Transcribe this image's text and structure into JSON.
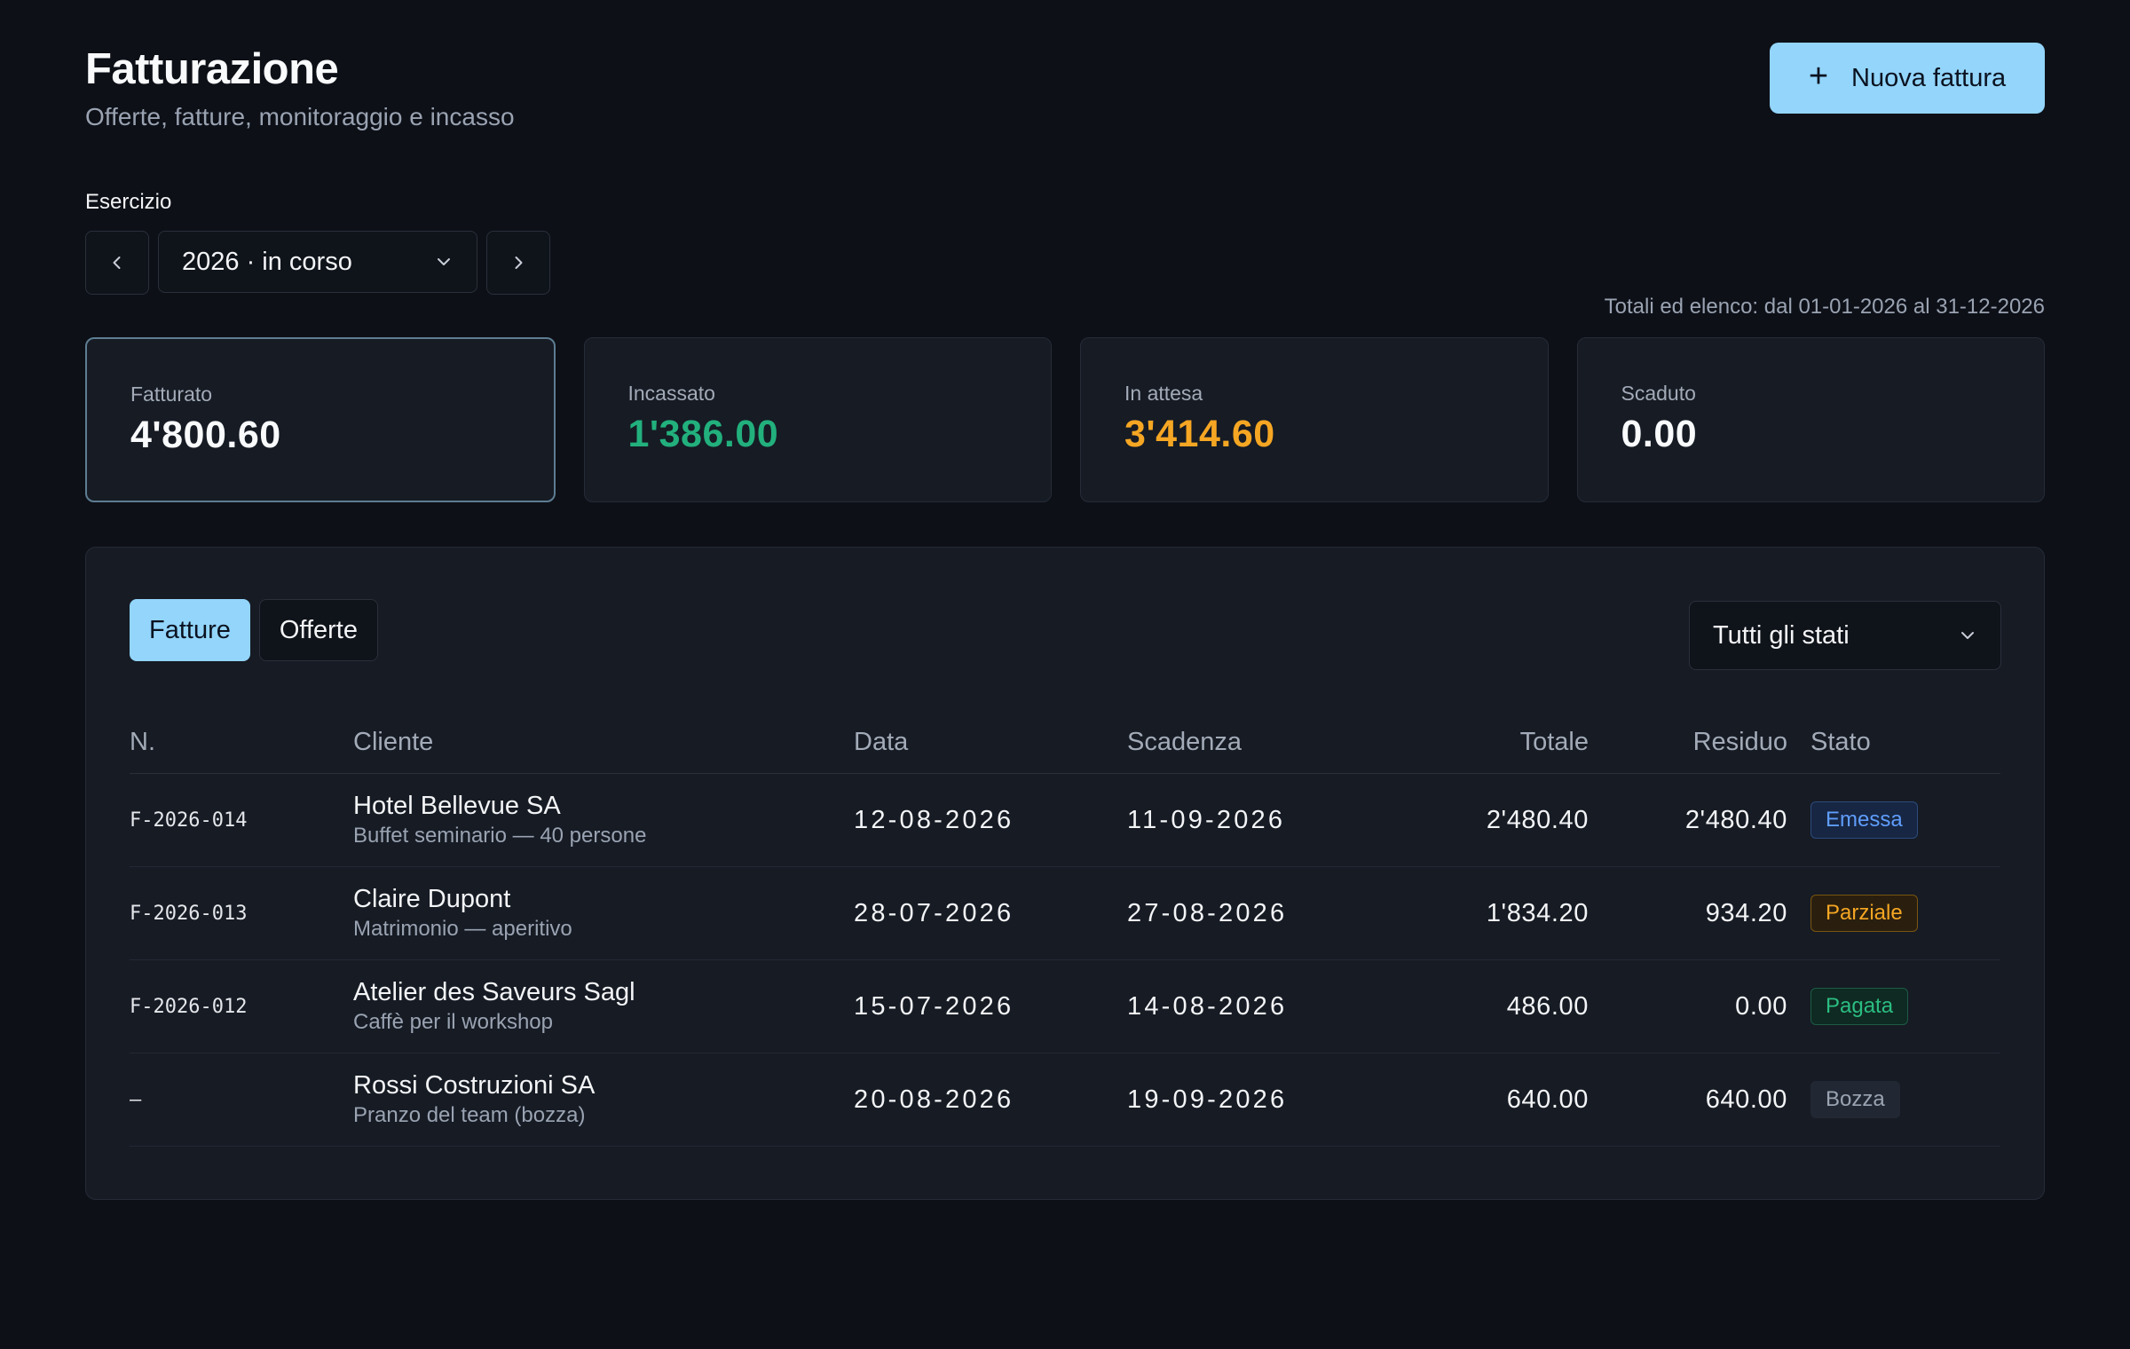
{
  "header": {
    "title": "Fatturazione",
    "subtitle": "Offerte, fatture, monitoraggio e incasso",
    "new_button_icon": "+",
    "new_button_label": "Nuova fattura"
  },
  "fiscal_year": {
    "label": "Esercizio",
    "selected": "2026 · in corso",
    "range_text": "Totali ed elenco: dal 01-01-2026 al 31-12-2026"
  },
  "kpis": [
    {
      "label": "Fatturato",
      "value": "4'800.60",
      "color": "#f8fafc"
    },
    {
      "label": "Incassato",
      "value": "1'386.00",
      "color": "#22b07d"
    },
    {
      "label": "In attesa",
      "value": "3'414.60",
      "color": "#f5a623"
    },
    {
      "label": "Scaduto",
      "value": "0.00",
      "color": "#f8fafc"
    }
  ],
  "tabs": [
    {
      "label": "Fatture",
      "active": true
    },
    {
      "label": "Offerte",
      "active": false
    }
  ],
  "status_filter": {
    "selected": "Tutti gli stati"
  },
  "table": {
    "columns": [
      "N.",
      "Cliente",
      "Data",
      "Scadenza",
      "Totale",
      "Residuo",
      "Stato"
    ],
    "rows": [
      {
        "number": "F-2026-014",
        "client": "Hotel Bellevue SA",
        "description": "Buffet seminario — 40 persone",
        "date": "12-08-2026",
        "due": "11-09-2026",
        "total": "2'480.40",
        "residual": "2'480.40",
        "status": "Emessa"
      },
      {
        "number": "F-2026-013",
        "client": "Claire Dupont",
        "description": "Matrimonio — aperitivo",
        "date": "28-07-2026",
        "due": "27-08-2026",
        "total": "1'834.20",
        "residual": "934.20",
        "status": "Parziale"
      },
      {
        "number": "F-2026-012",
        "client": "Atelier des Saveurs Sagl",
        "description": "Caffè per il workshop",
        "date": "15-07-2026",
        "due": "14-08-2026",
        "total": "486.00",
        "residual": "0.00",
        "status": "Pagata"
      },
      {
        "number": "–",
        "client": "Rossi Costruzioni SA",
        "description": "Pranzo del team (bozza)",
        "date": "20-08-2026",
        "due": "19-09-2026",
        "total": "640.00",
        "residual": "640.00",
        "status": "Bozza"
      }
    ]
  },
  "colors": {
    "background": "#0d1017",
    "card": "#161b24",
    "accent": "#93d5fb",
    "success": "#22b07d",
    "warning": "#f5a623"
  }
}
